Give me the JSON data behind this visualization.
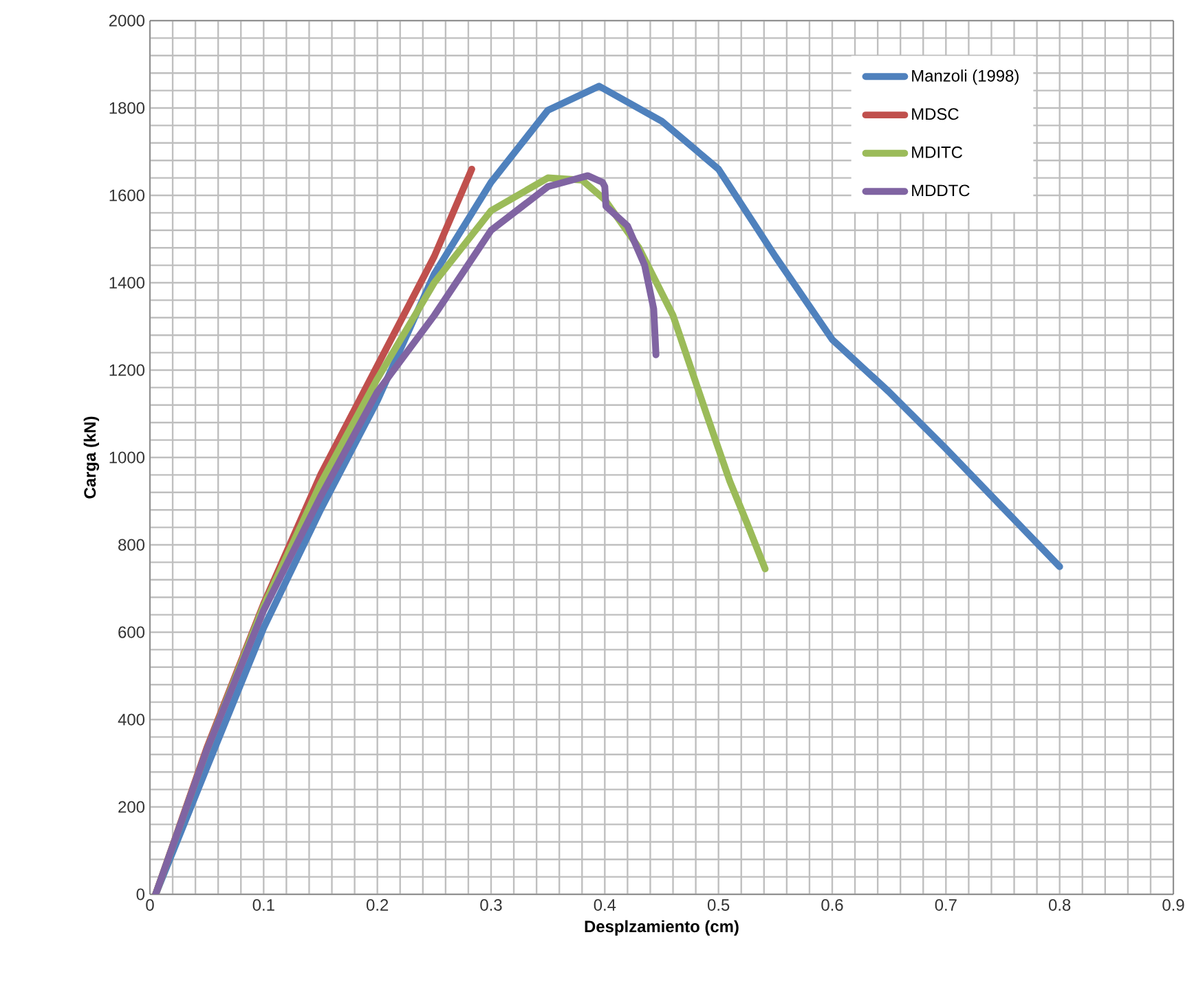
{
  "chart_data": {
    "type": "line",
    "xlabel": "Desplzamiento (cm)",
    "ylabel": "Carga (kN)",
    "xlim": [
      0,
      0.9
    ],
    "ylim": [
      0,
      2000
    ],
    "xticks": [
      0,
      0.1,
      0.2,
      0.3,
      0.4,
      0.5,
      0.6,
      0.7,
      0.8,
      0.9
    ],
    "yticks": [
      0,
      200,
      400,
      600,
      800,
      1000,
      1200,
      1400,
      1600,
      1800,
      2000
    ],
    "grid": true,
    "legend": "top right",
    "series": [
      {
        "name": "Manzoli (1998)",
        "color": "#4f81bd",
        "x": [
          0.005,
          0.05,
          0.1,
          0.15,
          0.2,
          0.25,
          0.3,
          0.35,
          0.395,
          0.45,
          0.5,
          0.55,
          0.6,
          0.65,
          0.7,
          0.75,
          0.8
        ],
        "values": [
          0,
          290,
          610,
          880,
          1130,
          1420,
          1630,
          1795,
          1850,
          1770,
          1660,
          1460,
          1270,
          1150,
          1020,
          885,
          750
        ]
      },
      {
        "name": "MDSC",
        "color": "#c0504d",
        "x": [
          0.005,
          0.05,
          0.1,
          0.15,
          0.2,
          0.25,
          0.283
        ],
        "values": [
          0,
          335,
          665,
          960,
          1210,
          1460,
          1660
        ]
      },
      {
        "name": "MDITC",
        "color": "#9bbb59",
        "x": [
          0.005,
          0.05,
          0.1,
          0.15,
          0.2,
          0.25,
          0.3,
          0.35,
          0.38,
          0.4,
          0.43,
          0.46,
          0.49,
          0.51,
          0.525,
          0.541
        ],
        "values": [
          0,
          330,
          660,
          940,
          1180,
          1400,
          1565,
          1640,
          1635,
          1590,
          1480,
          1325,
          1095,
          945,
          850,
          745
        ]
      },
      {
        "name": "MDDTC",
        "color": "#8064a2",
        "x": [
          0.005,
          0.05,
          0.1,
          0.15,
          0.2,
          0.25,
          0.3,
          0.35,
          0.385,
          0.398,
          0.4,
          0.401,
          0.42,
          0.435,
          0.443,
          0.445
        ],
        "values": [
          0,
          330,
          650,
          910,
          1150,
          1325,
          1520,
          1620,
          1645,
          1630,
          1620,
          1575,
          1530,
          1440,
          1340,
          1235
        ]
      }
    ]
  }
}
